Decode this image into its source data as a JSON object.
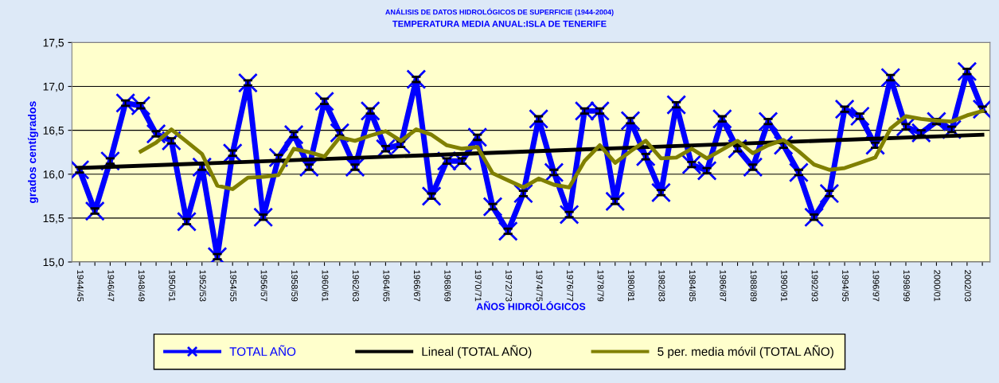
{
  "chart_data": {
    "type": "line",
    "title": "ANÁLISIS DE DATOS HIDROLÓGICOS DE SUPERFICIE (1944-2004)",
    "subtitle": "TEMPERATURA MEDIA ANUAL:ISLA DE TENERIFE",
    "xlabel": "AÑOS HIDROLÓGICOS",
    "ylabel": "grados centígrados",
    "categories": [
      "1944/45",
      null,
      "1946/47",
      null,
      "1948/49",
      null,
      "1950/51",
      null,
      "1952/53",
      null,
      "1954/55",
      null,
      "1956/57",
      null,
      "1958/59",
      null,
      "1960/61",
      null,
      "1962/63",
      null,
      "1964/65",
      null,
      "1966/67",
      null,
      "1968/69",
      null,
      "1970/71",
      null,
      "1972/73",
      null,
      "1974/75",
      null,
      "1976/77",
      null,
      "1978/79",
      null,
      "1980/81",
      null,
      "1982/83",
      null,
      "1984/85",
      null,
      "1986/87",
      null,
      "1988/89",
      null,
      "1990/91",
      null,
      "1992/93",
      null,
      "1994/95",
      null,
      "1996/97",
      null,
      "1998/99",
      null,
      "2000/01",
      null,
      "2002/03",
      null
    ],
    "series": [
      {
        "name": "TOTAL AÑO",
        "color": "#0000ff",
        "marker": "cross",
        "errors": [
          0.03,
          0.03,
          0.03,
          0.03,
          0.03,
          0.03,
          0.03,
          0.03,
          0.03,
          0.03,
          0.03,
          0.03,
          0.03,
          0.03,
          0.03,
          0.03,
          0.03,
          0.03,
          0.03,
          0.03,
          0.03,
          0.03,
          0.03,
          0.03,
          0.03,
          0.03,
          0.03,
          0.03,
          0.03,
          0.03,
          0.03,
          0.03,
          0.03,
          0.03,
          0.03,
          0.03,
          0.03,
          0.03,
          0.03,
          0.03,
          0.03,
          0.03,
          0.03,
          0.03,
          0.03,
          0.03,
          0.03,
          0.03,
          0.03,
          0.03,
          0.03,
          0.03,
          0.03,
          0.03,
          0.03,
          0.03,
          0.03,
          0.03,
          0.03,
          0.03
        ],
        "values": [
          16.05,
          15.58,
          16.15,
          16.81,
          16.78,
          16.46,
          16.38,
          15.46,
          16.08,
          15.06,
          16.24,
          17.04,
          15.51,
          16.19,
          16.45,
          16.08,
          16.83,
          16.47,
          16.08,
          16.72,
          16.29,
          16.34,
          17.08,
          15.75,
          16.15,
          16.15,
          16.42,
          15.63,
          15.35,
          15.78,
          16.63,
          16.02,
          15.54,
          16.72,
          16.72,
          15.69,
          16.61,
          16.2,
          15.79,
          16.79,
          16.11,
          16.04,
          16.63,
          16.29,
          16.08,
          16.6,
          16.33,
          16.02,
          15.51,
          15.78,
          16.74,
          16.66,
          16.33,
          17.1,
          16.54,
          16.47,
          16.6,
          16.51,
          17.17,
          16.74
        ]
      },
      {
        "name": "Lineal (TOTAL AÑO)",
        "color": "#000000",
        "marker": "none",
        "values": [
          16.07,
          null,
          null,
          null,
          null,
          null,
          null,
          null,
          null,
          null,
          null,
          null,
          null,
          null,
          null,
          null,
          null,
          null,
          null,
          null,
          null,
          null,
          null,
          null,
          null,
          null,
          null,
          null,
          null,
          null,
          null,
          null,
          null,
          null,
          null,
          null,
          null,
          null,
          null,
          null,
          null,
          null,
          null,
          null,
          null,
          null,
          null,
          null,
          null,
          null,
          null,
          null,
          null,
          null,
          null,
          null,
          null,
          null,
          null,
          16.45
        ]
      },
      {
        "name": "5 per. media móvil (TOTAL AÑO)",
        "color": "#808000",
        "marker": "none",
        "values": [
          null,
          null,
          null,
          null,
          16.26,
          16.36,
          16.51,
          16.37,
          16.23,
          15.87,
          15.83,
          15.96,
          15.97,
          15.99,
          16.29,
          16.25,
          16.2,
          16.42,
          16.38,
          16.44,
          16.49,
          16.38,
          16.51,
          16.45,
          16.33,
          16.29,
          16.31,
          16.01,
          15.93,
          15.85,
          15.95,
          15.88,
          15.85,
          16.15,
          16.33,
          16.13,
          16.26,
          16.38,
          16.18,
          16.19,
          16.29,
          16.18,
          16.28,
          16.38,
          16.24,
          16.33,
          16.39,
          16.26,
          16.11,
          16.05,
          16.07,
          16.13,
          16.19,
          16.52,
          16.66,
          16.63,
          16.61,
          16.6,
          16.67,
          16.72
        ]
      }
    ],
    "ylim": [
      15.0,
      17.5
    ],
    "yticks": [
      {
        "value": 15.0,
        "label": "15,0"
      },
      {
        "value": 15.5,
        "label": "15,5"
      },
      {
        "value": 16.0,
        "label": "16,0"
      },
      {
        "value": 16.5,
        "label": "16,5"
      },
      {
        "value": 17.0,
        "label": "17,0"
      },
      {
        "value": 17.5,
        "label": "17,5"
      }
    ],
    "grid": "y",
    "legend": "bottom"
  }
}
